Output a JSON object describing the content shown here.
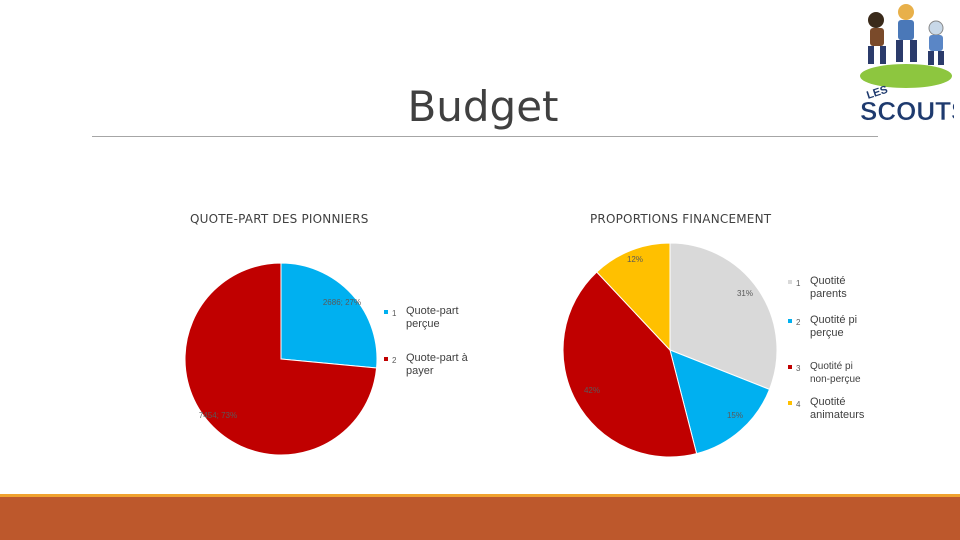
{
  "slide": {
    "title": "Budget",
    "logo_text": "LES SCOUTS"
  },
  "colors": {
    "light_blue": "#00b0f0",
    "dark_red": "#c00000",
    "grey": "#d9d9d9",
    "yellow": "#ffc000",
    "footer": "#bd582c",
    "footer_accent": "#f0a22e"
  },
  "chart_data": [
    {
      "type": "pie",
      "title": "QUOTE-PART DES PIONNIERS",
      "categories": [
        "1",
        "2"
      ],
      "values": [
        2686,
        7454
      ],
      "data_labels": [
        "2686; 27%",
        "7454; 73%"
      ],
      "legend": [
        {
          "key": "1",
          "label": "Quote-part perçue"
        },
        {
          "key": "2",
          "label": "Quote-part à payer"
        }
      ],
      "legend_position": "right"
    },
    {
      "type": "pie",
      "title": "PROPORTIONS FINANCEMENT",
      "categories": [
        "1",
        "2",
        "3",
        "4"
      ],
      "values": [
        31,
        15,
        42,
        12
      ],
      "data_labels": [
        "31%",
        "15%",
        "42%",
        "12%"
      ],
      "legend": [
        {
          "key": "1",
          "label": "Quotité parents"
        },
        {
          "key": "2",
          "label": "Quotité pi perçue"
        },
        {
          "key": "3",
          "label": "Quotité pi non-perçue"
        },
        {
          "key": "4",
          "label": "Quotité animateurs"
        }
      ],
      "legend_position": "right"
    }
  ]
}
